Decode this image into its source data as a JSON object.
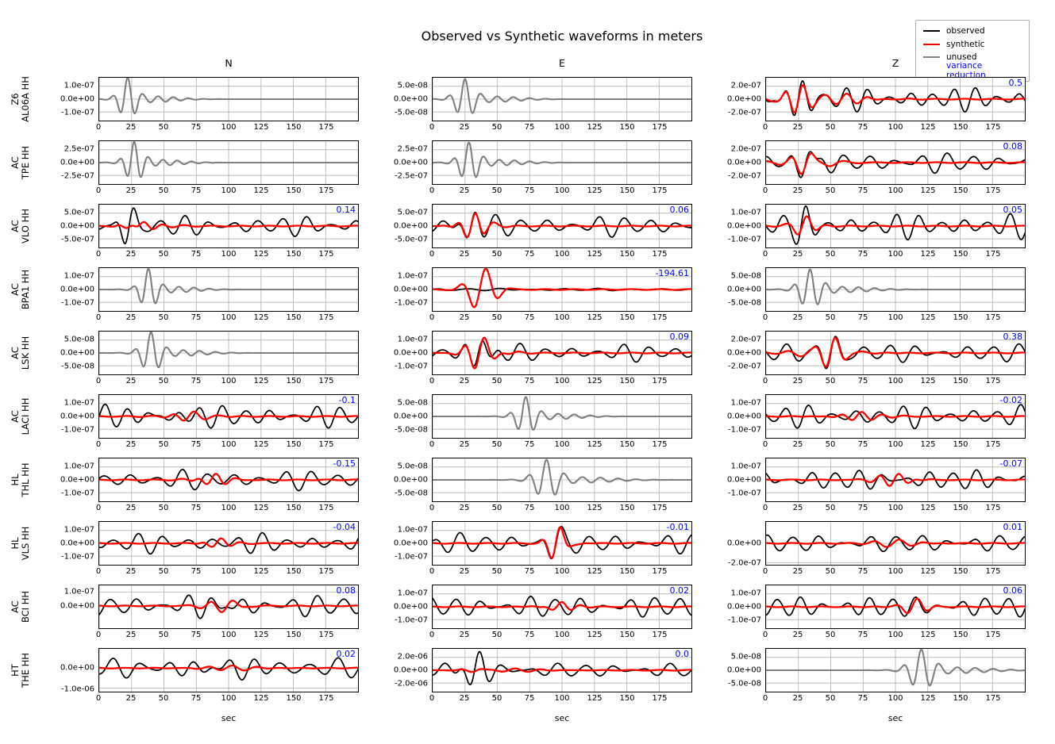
{
  "title": "Observed vs Synthetic waveforms in meters",
  "xlabel": "sec",
  "legend": {
    "items": [
      {
        "label": "observed",
        "color": "#000000",
        "type": "line"
      },
      {
        "label": "synthetic",
        "color": "#ff0000",
        "type": "line"
      },
      {
        "label": "unused",
        "color": "#808080",
        "type": "line"
      },
      {
        "label": "variance reduction",
        "color": "#0000ff",
        "type": "text"
      }
    ]
  },
  "colors": {
    "observed": "#000000",
    "synthetic": "#ff0000",
    "unused": "#808080",
    "vr_text": "#0000ff",
    "grid": "#b0b0b0",
    "spine": "#000000"
  },
  "chart_data": {
    "type": "line",
    "columns": [
      "N",
      "E",
      "Z"
    ],
    "xlim": [
      0,
      200
    ],
    "xticks": [
      0,
      25,
      50,
      75,
      100,
      125,
      150,
      175
    ],
    "rows": [
      {
        "network": "Z6",
        "station": "AL06A HH",
        "cells": [
          {
            "component": "N",
            "status": "unused",
            "vr": null,
            "yticks": [
              "1.0e-07",
              "0.0e+00",
              "-1.0e-07"
            ],
            "w": {
              "bc": 22,
              "bw": 8,
              "f": 0.085,
              "a": 1.55
            }
          },
          {
            "component": "E",
            "status": "unused",
            "vr": null,
            "yticks": [
              "5.0e-08",
              "0.0e+00",
              "-5.0e-08"
            ],
            "w": {
              "bc": 25,
              "bw": 9,
              "f": 0.08,
              "a": 1.45
            }
          },
          {
            "component": "Z",
            "status": "active",
            "vr": "0.5",
            "yticks": [
              "2.0e-07",
              "0.0e+00",
              "-2.0e-07"
            ],
            "w": {
              "f": 0.06,
              "ba": 0.95,
              "seed": 11,
              "b": [
                25,
                13,
                1.0
              ],
              "m": 0.7,
              "rc": 28,
              "rw": 26,
              "ra": 0.2,
              "fr": 0.06
            }
          }
        ]
      },
      {
        "network": "AC",
        "station": "TPE HH",
        "cells": [
          {
            "component": "N",
            "status": "unused",
            "vr": null,
            "yticks": [
              "2.5e-07",
              "0.0e+00",
              "-2.5e-07"
            ],
            "w": {
              "bc": 27,
              "bw": 8,
              "f": 0.09,
              "a": 1.5
            }
          },
          {
            "component": "E",
            "status": "unused",
            "vr": null,
            "yticks": [
              "2.5e-07",
              "0.0e+00",
              "-2.5e-07"
            ],
            "w": {
              "bc": 28,
              "bw": 9,
              "f": 0.085,
              "a": 1.45
            }
          },
          {
            "component": "Z",
            "status": "active",
            "vr": "0.08",
            "yticks": [
              "2.0e-07",
              "0.0e+00",
              "-2.0e-07"
            ],
            "w": {
              "f": 0.05,
              "ba": 0.85,
              "seed": 22,
              "b": [
                30,
                11,
                1.2
              ],
              "m": 0.55,
              "rc": 33,
              "rw": 16,
              "ra": 0.3,
              "fr": 0.06
            }
          }
        ]
      },
      {
        "network": "AC",
        "station": "VLO HH",
        "cells": [
          {
            "component": "N",
            "status": "active",
            "vr": "0.14",
            "yticks": [
              "5.0e-07",
              "0.0e+00",
              "-5.0e-07"
            ],
            "w": {
              "f": 0.053,
              "ba": 0.8,
              "seed": 33,
              "b": [
                23,
                8,
                1.3
              ],
              "m": 0.3,
              "rc": 32,
              "rw": 14,
              "ra": 0.45,
              "fr": 0.06
            }
          },
          {
            "component": "E",
            "status": "active",
            "vr": "0.06",
            "yticks": [
              "5.0e-07",
              "0.0e+00",
              "-5.0e-07"
            ],
            "w": {
              "f": 0.05,
              "ba": 0.85,
              "seed": 34,
              "b": [
                30,
                9,
                1.2
              ],
              "m": 0.5,
              "rc": 31,
              "rw": 11,
              "ra": 0.5,
              "fr": 0.07
            }
          },
          {
            "component": "Z",
            "status": "active",
            "vr": "0.05",
            "yticks": [
              "1.0e-07",
              "0.0e+00",
              "-1.0e-07"
            ],
            "w": {
              "f": 0.057,
              "ba": 1.0,
              "seed": 35,
              "b": [
                28,
                9,
                0.8
              ],
              "m": 0.3,
              "rc": 30,
              "rw": 11,
              "ra": 0.4,
              "fr": 0.065
            }
          }
        ]
      },
      {
        "network": "AC",
        "station": "BPA1 HH",
        "cells": [
          {
            "component": "N",
            "status": "unused",
            "vr": null,
            "yticks": [
              "1.0e-07",
              "0.0e+00",
              "-1.0e-07"
            ],
            "w": {
              "bc": 38,
              "bw": 8,
              "f": 0.085,
              "a": 1.5
            }
          },
          {
            "component": "E",
            "status": "active",
            "vr": "-194.61",
            "yticks": [
              "1.0e-07",
              "0.0e+00",
              "-1.0e-07"
            ],
            "w": {
              "f": 0.04,
              "ba": 0.1,
              "seed": 44,
              "m": 0,
              "rc": 38,
              "rw": 13,
              "ra": 1.7,
              "fr": 0.05
            }
          },
          {
            "component": "Z",
            "status": "unused",
            "vr": null,
            "yticks": [
              "5.0e-08",
              "0.0e+00",
              "-5.0e-08"
            ],
            "w": {
              "bc": 34,
              "bw": 10,
              "f": 0.08,
              "a": 1.45
            }
          }
        ]
      },
      {
        "network": "AC",
        "station": "LSK HH",
        "cells": [
          {
            "component": "N",
            "status": "unused",
            "vr": null,
            "yticks": [
              "5.0e-08",
              "0.0e+00",
              "-5.0e-08"
            ],
            "w": {
              "bc": 40,
              "bw": 9,
              "f": 0.08,
              "a": 1.5
            }
          },
          {
            "component": "E",
            "status": "active",
            "vr": "0.09",
            "yticks": [
              "1.0e-07",
              "0.0e+00",
              "-1.0e-07"
            ],
            "w": {
              "f": 0.05,
              "ba": 0.7,
              "seed": 55,
              "b": [
                35,
                11,
                1.2
              ],
              "m": 0.5,
              "rc": 38,
              "rw": 13,
              "ra": 0.85,
              "fr": 0.06
            }
          },
          {
            "component": "Z",
            "status": "active",
            "vr": "0.38",
            "yticks": [
              "2.0e-07",
              "0.0e+00",
              "-2.0e-07"
            ],
            "w": {
              "f": 0.05,
              "ba": 0.75,
              "seed": 56,
              "b": [
                50,
                11,
                1.3
              ],
              "m": 0.7,
              "rc": 50,
              "rw": 16,
              "ra": 0.35,
              "fr": 0.06
            }
          }
        ]
      },
      {
        "network": "AC",
        "station": "LACI HH",
        "cells": [
          {
            "component": "N",
            "status": "active",
            "vr": "-0.1",
            "yticks": [
              "1.0e-07",
              "0.0e+00",
              "-1.0e-07"
            ],
            "w": {
              "f": 0.055,
              "ba": 0.9,
              "seed": 66,
              "b": [
                45,
                28,
                0.35
              ],
              "m": 0.2,
              "rc": 70,
              "rw": 16,
              "ra": 0.4,
              "fr": 0.06
            }
          },
          {
            "component": "E",
            "status": "unused",
            "vr": null,
            "yticks": [
              "5.0e-08",
              "0.0e+00",
              "-5.0e-08"
            ],
            "w": {
              "bc": 72,
              "bw": 9,
              "f": 0.08,
              "a": 1.4
            }
          },
          {
            "component": "Z",
            "status": "active",
            "vr": "-0.02",
            "yticks": [
              "1.0e-07",
              "0.0e+00",
              "-1.0e-07"
            ],
            "w": {
              "f": 0.055,
              "ba": 0.9,
              "seed": 67,
              "m": 0.25,
              "rc": 72,
              "rw": 15,
              "ra": 0.4,
              "fr": 0.06
            }
          }
        ]
      },
      {
        "network": "HL",
        "station": "THL HH",
        "cells": [
          {
            "component": "N",
            "status": "active",
            "vr": "-0.15",
            "yticks": [
              "1.0e-07",
              "0.0e+00",
              "-1.0e-07"
            ],
            "w": {
              "f": 0.05,
              "ba": 0.8,
              "seed": 77,
              "m": 0.2,
              "rc": 88,
              "rw": 13,
              "ra": 0.5,
              "fr": 0.065
            }
          },
          {
            "component": "E",
            "status": "unused",
            "vr": null,
            "yticks": [
              "5.0e-08",
              "0.0e+00",
              "-5.0e-08"
            ],
            "w": {
              "bc": 88,
              "bw": 11,
              "f": 0.072,
              "a": 1.45
            }
          },
          {
            "component": "Z",
            "status": "active",
            "vr": "-0.07",
            "yticks": [
              "1.0e-07",
              "0.0e+00",
              "-1.0e-07"
            ],
            "w": {
              "f": 0.055,
              "ba": 0.85,
              "seed": 78,
              "m": 0.25,
              "rc": 100,
              "rw": 14,
              "ra": 0.5,
              "fr": 0.065
            }
          }
        ]
      },
      {
        "network": "HL",
        "station": "VLS HH",
        "cells": [
          {
            "component": "N",
            "status": "active",
            "vr": "-0.04",
            "yticks": [
              "1.0e-07",
              "0.0e+00",
              "-1.0e-07"
            ],
            "w": {
              "f": 0.052,
              "ba": 0.8,
              "seed": 88,
              "m": 0.2,
              "rc": 92,
              "rw": 11,
              "ra": 0.45,
              "fr": 0.06
            }
          },
          {
            "component": "E",
            "status": "active",
            "vr": "-0.01",
            "yticks": [
              "1.0e-07",
              "0.0e+00",
              "-1.0e-07"
            ],
            "w": {
              "f": 0.05,
              "ba": 0.85,
              "seed": 89,
              "b": [
                95,
                9,
                0.9
              ],
              "m": 0.5,
              "rc": 96,
              "rw": 9,
              "ra": 0.75,
              "fr": 0.07
            }
          },
          {
            "component": "Z",
            "status": "active",
            "vr": "0.01",
            "yticks": [
              "0.0e+00",
              "-2.0e-07"
            ],
            "fracs": [
              0.5,
              0.95
            ],
            "w": {
              "f": 0.05,
              "ba": 0.75,
              "seed": 90,
              "m": 0.15,
              "rc": 100,
              "rw": 18,
              "ra": 0.25,
              "fr": 0.05
            }
          }
        ]
      },
      {
        "network": "AC",
        "station": "BCI HH",
        "cells": [
          {
            "component": "N",
            "status": "active",
            "vr": "0.08",
            "yticks": [
              "1.0e-07",
              "0.0e+00"
            ],
            "fracs": [
              0.16,
              0.48
            ],
            "w": {
              "f": 0.05,
              "ba": 0.9,
              "seed": 99,
              "b": [
                95,
                22,
                0.4
              ],
              "m": 0.3,
              "rc": 100,
              "rw": 13,
              "ra": 0.5,
              "fr": 0.055
            }
          },
          {
            "component": "E",
            "status": "active",
            "vr": "0.02",
            "yticks": [
              "1.0e-07",
              "0.0e+00",
              "-1.0e-07"
            ],
            "w": {
              "f": 0.052,
              "ba": 0.9,
              "seed": 100,
              "m": 0.3,
              "rc": 98,
              "rw": 11,
              "ra": 0.45,
              "fr": 0.06
            }
          },
          {
            "component": "Z",
            "status": "active",
            "vr": "0.06",
            "yticks": [
              "1.0e-07",
              "0.0e+00",
              "-1.0e-07"
            ],
            "w": {
              "f": 0.056,
              "ba": 0.9,
              "seed": 101,
              "m": 0.3,
              "rc": 115,
              "rw": 11,
              "ra": 0.5,
              "fr": 0.06
            }
          }
        ]
      },
      {
        "network": "HT",
        "station": "THE HH",
        "cells": [
          {
            "component": "N",
            "status": "active",
            "vr": "0.02",
            "yticks": [
              "0.0e+00",
              "-1.0e-06"
            ],
            "fracs": [
              0.45,
              0.92
            ],
            "w": {
              "f": 0.046,
              "ba": 0.8,
              "seed": 110,
              "b": [
                100,
                38,
                0.55
              ],
              "m": 0.12,
              "rc": 100,
              "rw": 28,
              "ra": 0.15,
              "fr": 0.05
            }
          },
          {
            "component": "E",
            "status": "active",
            "vr": "0.0",
            "yticks": [
              "2.0e-06",
              "0.0e+00",
              "-2.0e-06"
            ],
            "w": {
              "f": 0.046,
              "ba": 0.6,
              "seed": 111,
              "b": [
                33,
                11,
                1.6
              ],
              "m": 0.1,
              "rc": 60,
              "rw": 35,
              "ra": 0.12,
              "fr": 0.05
            }
          },
          {
            "component": "Z",
            "status": "unused",
            "vr": null,
            "yticks": [
              "5.0e-08",
              "0.0e+00",
              "-5.0e-08"
            ],
            "w": {
              "bc": 120,
              "bw": 11,
              "f": 0.072,
              "a": 1.5
            }
          }
        ]
      }
    ]
  }
}
